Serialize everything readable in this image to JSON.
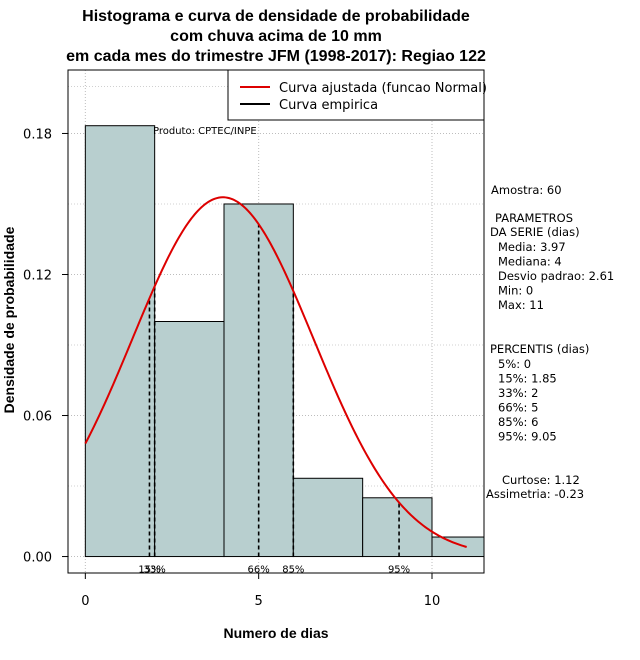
{
  "chart_data": {
    "type": "bar",
    "title_lines": [
      "Histograma e curva de densidade de probabilidade",
      "com chuva acima de 10 mm",
      "em cada mes do trimestre JFM (1998-2017): Regiao 122"
    ],
    "xlabel": "Numero de dias",
    "ylabel": "Densidade de probabilidade",
    "xlim": [
      -0.5,
      11.5
    ],
    "ylim": [
      -0.007,
      0.207
    ],
    "x_ticks": [
      0,
      5,
      10
    ],
    "y_ticks": [
      0.0,
      0.06,
      0.12,
      0.18
    ],
    "y_tick_labels": [
      "0.00",
      "0.06",
      "0.12",
      "0.18"
    ],
    "grid": true,
    "bins": [
      {
        "x0": 0,
        "x1": 2,
        "density": 0.1833
      },
      {
        "x0": 2,
        "x1": 4,
        "density": 0.1
      },
      {
        "x0": 4,
        "x1": 6,
        "density": 0.15
      },
      {
        "x0": 6,
        "x1": 8,
        "density": 0.0333
      },
      {
        "x0": 8,
        "x1": 10,
        "density": 0.025
      },
      {
        "x0": 10,
        "x1": 12,
        "density": 0.0083
      }
    ],
    "bar_color": "#b8cfcf",
    "normal_curve": {
      "mean": 3.97,
      "sd": 2.61,
      "x_from": 0,
      "x_to": 11,
      "color": "#dd0000"
    },
    "percentile_lines": [
      {
        "x": 1.85,
        "label": "15%"
      },
      {
        "x": 2,
        "label": "33%"
      },
      {
        "x": 5,
        "label": "66%"
      },
      {
        "x": 6,
        "label": "85%"
      },
      {
        "x": 9.05,
        "label": "95%"
      }
    ],
    "legend": {
      "placement": "top-right",
      "items": [
        {
          "label": "Curva ajustada (funcao Normal)",
          "color": "#dd0000"
        },
        {
          "label": "Curva empirica",
          "color": "#000000"
        }
      ]
    },
    "product_label": "Produto: CPTEC/INPE",
    "stats": {
      "sample": "Amostra: 60",
      "params_title_1": "PARAMETROS",
      "params_title_2": "DA SERIE (dias)",
      "params": [
        "Media: 3.97",
        "Mediana: 4",
        "Desvio padrao: 2.61",
        "Min: 0",
        "Max: 11"
      ],
      "percentis_title": "PERCENTIS (dias)",
      "percentis": [
        "5%: 0",
        "15%: 1.85",
        "33%: 2",
        "66%: 5",
        "85%: 6",
        "95%: 9.05"
      ],
      "curtose": "Curtose: 1.12",
      "assimetria": "Assimetria: -0.23"
    }
  }
}
